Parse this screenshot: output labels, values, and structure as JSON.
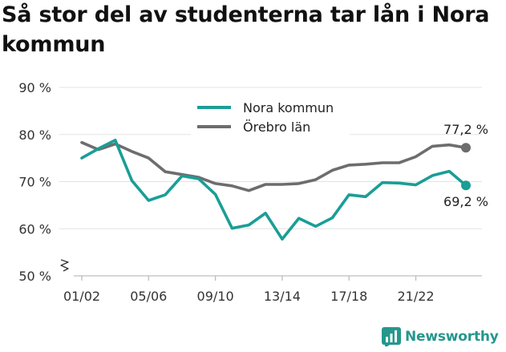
{
  "chart_data": {
    "type": "line",
    "title": "Så stor del av studenterna tar lån i Nora kommun",
    "xlabel": "",
    "ylabel": "",
    "ylim": [
      50,
      90
    ],
    "yticks": [
      50,
      60,
      70,
      80,
      90
    ],
    "ytick_labels": [
      "50 %",
      "60 %",
      "70 %",
      "80 %",
      "90 %"
    ],
    "axis_break": true,
    "x": [
      "01/02",
      "02/03",
      "03/04",
      "04/05",
      "05/06",
      "06/07",
      "07/08",
      "08/09",
      "09/10",
      "10/11",
      "11/12",
      "12/13",
      "13/14",
      "14/15",
      "15/16",
      "16/17",
      "17/18",
      "18/19",
      "19/20",
      "20/21",
      "21/22",
      "22/23",
      "23/24",
      "24/25"
    ],
    "xtick_labels": [
      "01/02",
      "05/06",
      "09/10",
      "13/14",
      "17/18",
      "21/22"
    ],
    "legend_position": "top-center",
    "series": [
      {
        "name": "Nora kommun",
        "color": "#1a9e96",
        "values": [
          75.0,
          77.0,
          78.8,
          70.2,
          66.0,
          67.2,
          71.2,
          70.6,
          67.3,
          60.1,
          60.8,
          63.3,
          57.8,
          62.2,
          60.5,
          62.3,
          67.2,
          66.8,
          69.8,
          69.7,
          69.3,
          71.3,
          72.2,
          69.2
        ],
        "end_label": "69,2 %"
      },
      {
        "name": "Örebro län",
        "color": "#6d6d70",
        "values": [
          78.3,
          76.8,
          78.0,
          76.4,
          75.0,
          72.1,
          71.5,
          70.9,
          69.6,
          69.1,
          68.1,
          69.4,
          69.4,
          69.6,
          70.4,
          72.4,
          73.5,
          73.7,
          74.0,
          74.0,
          75.3,
          77.5,
          77.8,
          77.2
        ],
        "end_label": "77,2 %"
      }
    ]
  },
  "brand": {
    "name": "Newsworthy",
    "color": "#25978d"
  }
}
